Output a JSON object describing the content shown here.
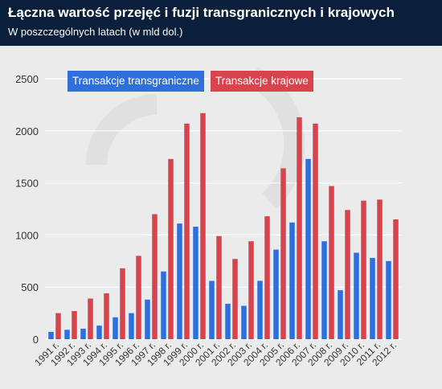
{
  "header": {
    "title": "Łączna wartość przejęć i fuzji transgranicznych i krajowych",
    "subtitle": "W poszczególnych latach (w mld dol.)"
  },
  "colors": {
    "header_bg": "#0a1f3a",
    "plot_bg": "#ebebeb",
    "grid": "#ffffff",
    "cross_border": "#2f6fdc",
    "domestic": "#d9434c",
    "watermark": "#e0e0e0"
  },
  "chart_data": {
    "type": "bar",
    "title": "Łączna wartość przejęć i fuzji transgranicznych i krajowych",
    "subtitle": "W poszczególnych latach (w mld dol.)",
    "xlabel": "",
    "ylabel": "",
    "ylim": [
      0,
      2500
    ],
    "yticks": [
      0,
      500,
      1000,
      1500,
      2000,
      2500
    ],
    "grid": true,
    "legend_position": "top-left",
    "categories": [
      "1991 r.",
      "1992 r.",
      "1993 r.",
      "1994 r.",
      "1995 r.",
      "1996 r.",
      "1997 r.",
      "1998 r.",
      "1999 r.",
      "2000 r.",
      "2001 r.",
      "2002 r.",
      "2003 r.",
      "2004 r.",
      "2005 r.",
      "2006 r.",
      "2007 r.",
      "2008 r.",
      "2009 r.",
      "2010 r.",
      "2011 r.",
      "2012 r."
    ],
    "series": [
      {
        "name": "Transakcje transgraniczne",
        "color": "#2f6fdc",
        "values": [
          70,
          90,
          100,
          130,
          210,
          250,
          380,
          650,
          1110,
          1080,
          560,
          340,
          320,
          560,
          860,
          1120,
          1730,
          940,
          470,
          830,
          780,
          750
        ]
      },
      {
        "name": "Transakcje krajowe",
        "color": "#d9434c",
        "values": [
          250,
          270,
          390,
          440,
          680,
          800,
          1200,
          1730,
          2070,
          2170,
          990,
          770,
          940,
          1180,
          1640,
          2130,
          2070,
          1470,
          1240,
          1330,
          1340,
          1150
        ]
      }
    ]
  }
}
